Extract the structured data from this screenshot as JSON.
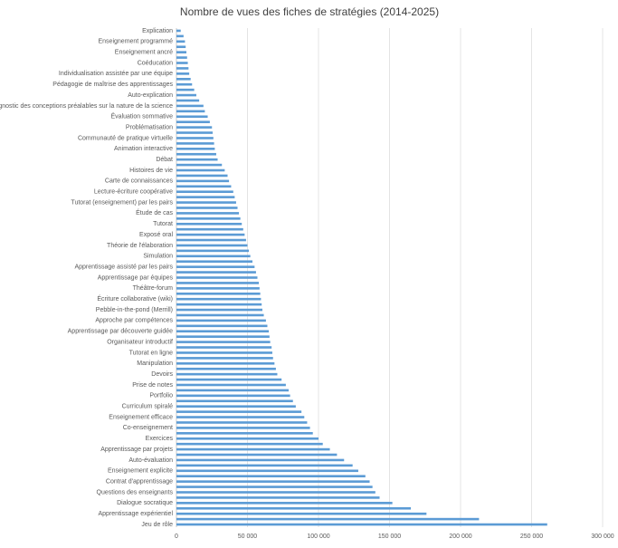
{
  "chart_data": {
    "type": "barh",
    "title": "Nombre de vues des fiches de stratégies (2014-2025)",
    "categories": [
      "Explication",
      null,
      "Enseignement programmé",
      null,
      "Enseignement ancré",
      null,
      "Coéducation",
      null,
      "Individualisation assistée par une équipe",
      null,
      "Pédagogie de maîtrise des apprentissages",
      null,
      "Auto-explication",
      null,
      "Diagnostic des conceptions préalables sur la nature de la science",
      null,
      "Évaluation sommative",
      null,
      "Problématisation",
      null,
      "Communauté de pratique virtuelle",
      null,
      "Animation interactive",
      null,
      "Débat",
      null,
      "Histoires de vie",
      null,
      "Carte de connaissances",
      null,
      "Lecture-écriture coopérative",
      null,
      "Tutorat (enseignement) par les pairs",
      null,
      "Étude de cas",
      null,
      "Tutorat",
      null,
      "Exposé oral",
      null,
      "Théorie de l'élaboration",
      null,
      "Simulation",
      null,
      "Apprentissage assisté par les pairs",
      null,
      "Apprentissage par équipes",
      null,
      "Théâtre-forum",
      null,
      "Écriture collaborative (wiki)",
      null,
      "Pebble-in-the-pond (Merrill)",
      null,
      "Approche par compétences",
      null,
      "Apprentissage par découverte guidée",
      null,
      "Organisateur introductif",
      null,
      "Tutorat en ligne",
      null,
      "Manipulation",
      null,
      "Devoirs",
      null,
      "Prise de notes",
      null,
      "Portfolio",
      null,
      "Curriculum spiralé",
      null,
      "Enseignement efficace",
      null,
      "Co-enseignement",
      null,
      "Exercices",
      null,
      "Apprentissage par projets",
      null,
      "Auto-évaluation",
      null,
      "Enseignement explicite",
      null,
      "Contrat d'apprentissage",
      null,
      "Questions des enseignants",
      null,
      "Dialogue socratique",
      null,
      "Apprentissage expérientiel",
      null,
      "Jeu de rôle"
    ],
    "values": [
      3000,
      5000,
      6000,
      6500,
      7000,
      7500,
      8000,
      8500,
      9000,
      10000,
      11000,
      12500,
      14000,
      16000,
      19000,
      20000,
      22000,
      23500,
      25000,
      25500,
      26000,
      26500,
      27000,
      28000,
      29000,
      32000,
      34000,
      36000,
      37000,
      38500,
      40000,
      41000,
      42000,
      43000,
      44000,
      45000,
      46000,
      47000,
      48000,
      49000,
      50000,
      51000,
      52000,
      53500,
      55000,
      56000,
      57000,
      58000,
      58500,
      59000,
      59500,
      60000,
      60500,
      61500,
      63000,
      64000,
      65000,
      65500,
      66000,
      67000,
      67500,
      68000,
      69000,
      70000,
      71000,
      74000,
      77000,
      79000,
      80000,
      82000,
      84000,
      88000,
      90000,
      92000,
      94000,
      96000,
      100000,
      103000,
      108000,
      113000,
      118000,
      124000,
      128000,
      133000,
      136000,
      138000,
      140000,
      143000,
      152000,
      165000,
      176000,
      213000,
      261000
    ],
    "color": "#5b9bd5",
    "xlim": [
      0,
      300000
    ],
    "xticks": [
      0,
      {
        "value": 50000,
        "label": "50 000"
      },
      {
        "value": 100000,
        "label": "100 000"
      },
      {
        "value": 150000,
        "label": "150 000"
      },
      {
        "value": 200000,
        "label": "200 000"
      },
      {
        "value": 250000,
        "label": "250 000"
      },
      {
        "value": 300000,
        "label": "300 000"
      }
    ],
    "grid": true
  }
}
